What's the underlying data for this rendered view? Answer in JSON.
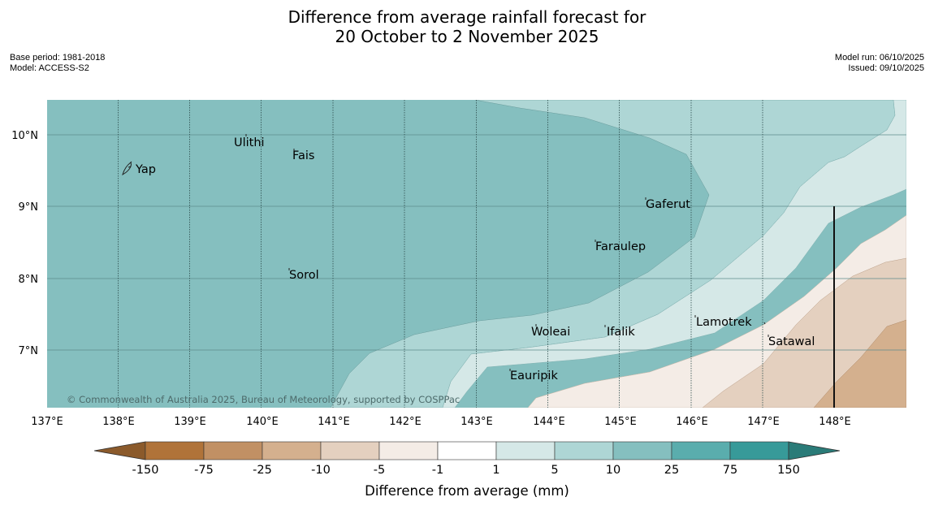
{
  "title": {
    "line1": "Difference from average rainfall forecast for",
    "line2": "20 October to 2 November 2025"
  },
  "meta": {
    "base_period": "Base period: 1981-2018",
    "model": "Model: ACCESS-S2",
    "model_run": "Model run: 06/10/2025",
    "issued": "Issued: 09/10/2025"
  },
  "map": {
    "lat_labels": [
      "10°N",
      "9°N",
      "8°N",
      "7°N"
    ],
    "lon_labels": [
      "137°E",
      "138°E",
      "139°E",
      "140°E",
      "141°E",
      "142°E",
      "143°E",
      "144°E",
      "145°E",
      "146°E",
      "147°E",
      "148°E"
    ],
    "places": [
      "Yap",
      "Ulithi",
      "Fais",
      "Gaferut",
      "Faraulep",
      "Sorol",
      "Woleai",
      "Ifalik",
      "Lamotrek",
      "Satawal",
      "Eauripik"
    ],
    "copyright": "© Commonwealth of Australia 2025, Bureau of Meteorology, supported by COSPPac"
  },
  "legend": {
    "ticks": [
      "-150",
      "-75",
      "-25",
      "-10",
      "-5",
      "-1",
      "1",
      "5",
      "10",
      "25",
      "75",
      "150"
    ],
    "colors": [
      "#8b5a2b",
      "#b07339",
      "#c19064",
      "#d4b08e",
      "#e4d0bf",
      "#f4ece6",
      "#ffffff",
      "#d5e8e7",
      "#aed6d5",
      "#85bfbf",
      "#5aadad",
      "#379a99",
      "#2a7b78"
    ],
    "label": "Difference from average (mm)"
  }
}
